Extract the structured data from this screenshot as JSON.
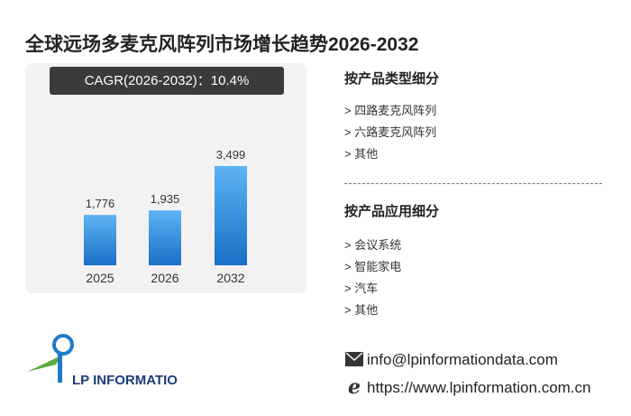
{
  "chart_data": {
    "type": "bar",
    "title": "全球远场多麦克风阵列市场增长趋势2026-2032",
    "subtitle": "CAGR(2026-2032)：10.4%",
    "categories": [
      "2025",
      "2026",
      "2032"
    ],
    "values": [
      1776,
      1935,
      3499
    ],
    "value_labels": [
      "1,776",
      "1,935",
      "3,499"
    ],
    "color": "#2a86da"
  },
  "segments": [
    {
      "title": "按产品类型细分",
      "items": [
        "> 四路麦克风阵列",
        "> 六路麦克风阵列",
        "> 其他"
      ]
    },
    {
      "title": "按产品应用细分",
      "items": [
        "> 会议系统",
        "> 智能家电",
        "> 汽车",
        "> 其他"
      ]
    }
  ],
  "contact": {
    "email": "info@lpinformationdata.com",
    "website": "https://www.lpinformation.com.cn"
  },
  "logo": "LP INFORMATION"
}
